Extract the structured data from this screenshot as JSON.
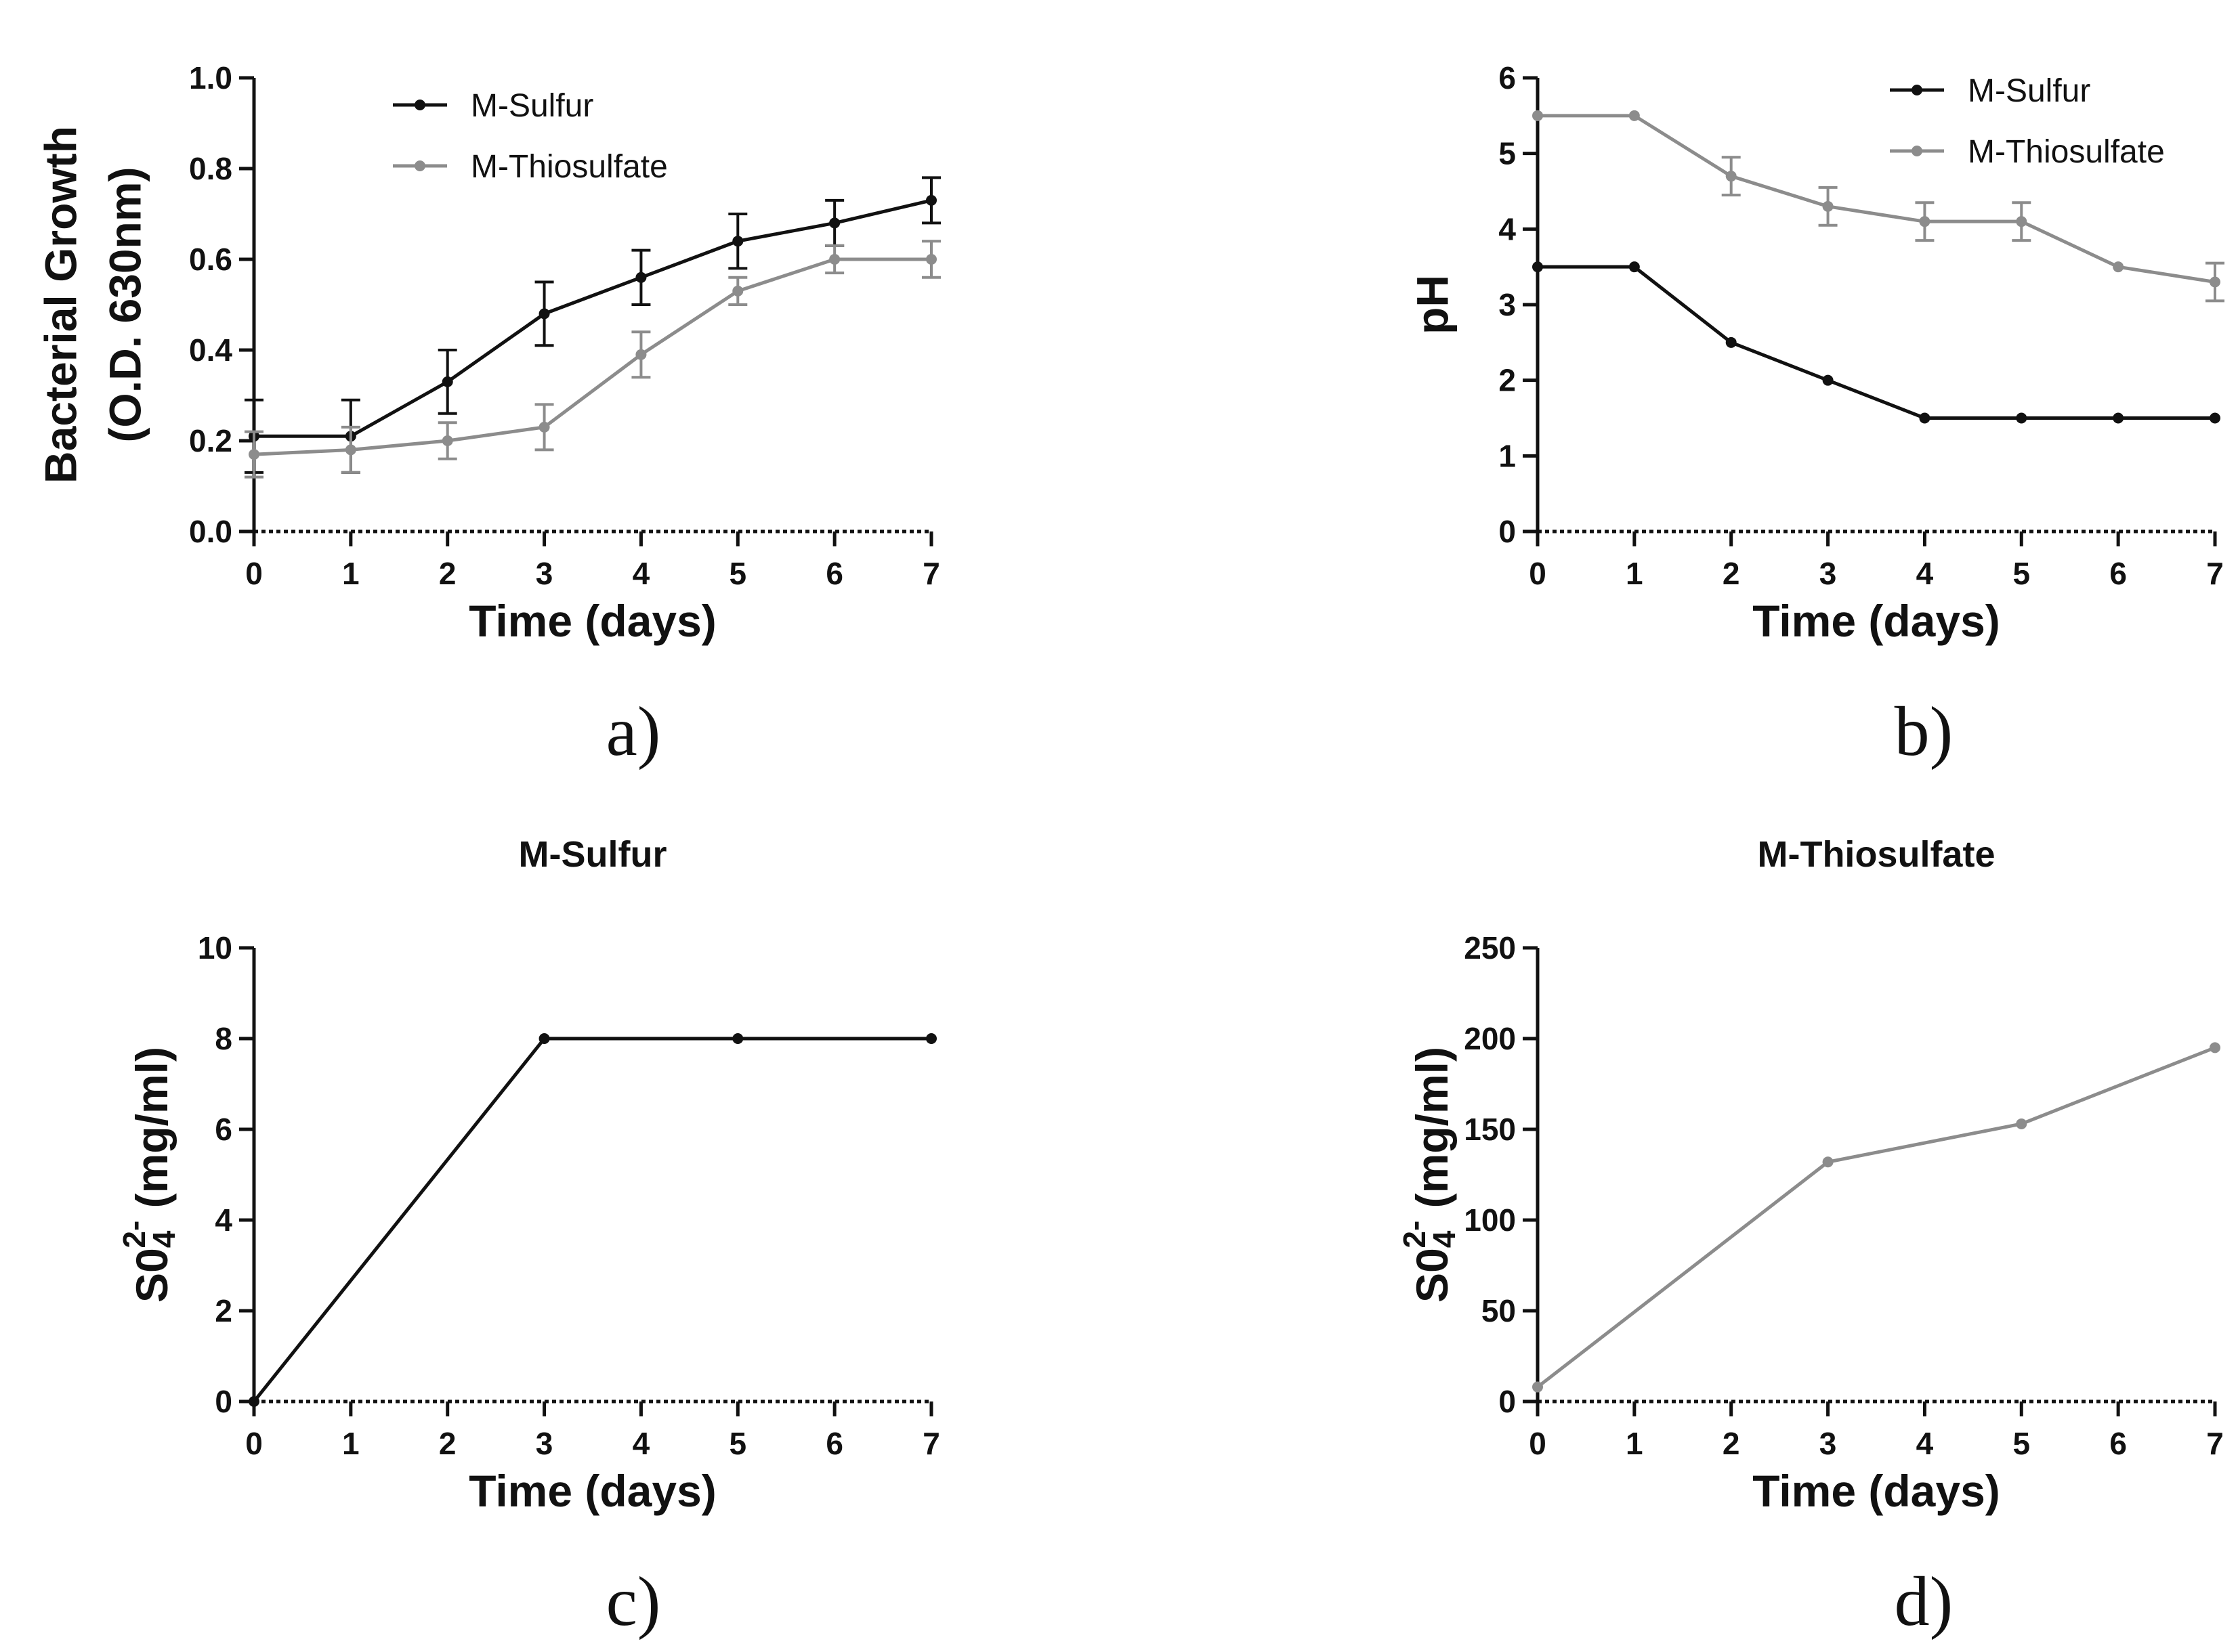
{
  "chart_data": [
    {
      "panel": "a",
      "panel_label": "a)",
      "type": "line",
      "title": "",
      "xlabel": "Time (days)",
      "ylabel_lines": [
        "Bacterial Growth",
        "(O.D. 630nm)"
      ],
      "x": [
        0,
        1,
        2,
        3,
        4,
        5,
        6,
        7
      ],
      "xlim": [
        0,
        7
      ],
      "ylim": [
        0,
        1.0
      ],
      "xticks": [
        "0",
        "1",
        "2",
        "3",
        "4",
        "5",
        "6",
        "7"
      ],
      "yticks": [
        "0.0",
        "0.2",
        "0.4",
        "0.6",
        "0.8",
        "1.0"
      ],
      "ytick_values": [
        0,
        0.2,
        0.4,
        0.6,
        0.8,
        1.0
      ],
      "legend": "top",
      "series": [
        {
          "name": "M-Sulfur",
          "color": "#111111",
          "values": [
            0.21,
            0.21,
            0.33,
            0.48,
            0.56,
            0.64,
            0.68,
            0.73
          ],
          "errors": [
            0.08,
            0.08,
            0.07,
            0.07,
            0.06,
            0.06,
            0.05,
            0.05
          ]
        },
        {
          "name": "M-Thiosulfate",
          "color": "#8c8c8c",
          "values": [
            0.17,
            0.18,
            0.2,
            0.23,
            0.39,
            0.53,
            0.6,
            0.6
          ],
          "errors": [
            0.05,
            0.05,
            0.04,
            0.05,
            0.05,
            0.03,
            0.03,
            0.04
          ]
        }
      ]
    },
    {
      "panel": "b",
      "panel_label": "b)",
      "type": "line",
      "title": "",
      "xlabel": "Time (days)",
      "ylabel_lines": [
        "pH"
      ],
      "x": [
        0,
        1,
        2,
        3,
        4,
        5,
        6,
        7
      ],
      "xlim": [
        0,
        7
      ],
      "ylim": [
        0,
        6
      ],
      "xticks": [
        "0",
        "1",
        "2",
        "3",
        "4",
        "5",
        "6",
        "7"
      ],
      "yticks": [
        "0",
        "1",
        "2",
        "3",
        "4",
        "5",
        "6"
      ],
      "ytick_values": [
        0,
        1,
        2,
        3,
        4,
        5,
        6
      ],
      "legend": "top-right",
      "series": [
        {
          "name": "M-Sulfur",
          "color": "#111111",
          "values": [
            3.5,
            3.5,
            2.5,
            2.0,
            1.5,
            1.5,
            1.5,
            1.5
          ],
          "errors": [
            0,
            0,
            0,
            0,
            0,
            0,
            0,
            0
          ]
        },
        {
          "name": "M-Thiosulfate",
          "color": "#8c8c8c",
          "values": [
            5.5,
            5.5,
            4.7,
            4.3,
            4.1,
            4.1,
            3.5,
            3.3
          ],
          "errors": [
            0,
            0,
            0.25,
            0.25,
            0.25,
            0.25,
            0,
            0.25
          ]
        }
      ]
    },
    {
      "panel": "c",
      "panel_label": "c)",
      "type": "line",
      "title": "M-Sulfur",
      "xlabel": "Time (days)",
      "ylabel_main": "S0",
      "ylabel_sub": "4",
      "ylabel_sup": "2-",
      "ylabel_unit": " (mg/ml)",
      "x": [
        0,
        3,
        5,
        7
      ],
      "xlim": [
        0,
        7
      ],
      "ylim": [
        0,
        10
      ],
      "xticks": [
        "0",
        "1",
        "2",
        "3",
        "4",
        "5",
        "6",
        "7"
      ],
      "yticks": [
        "0",
        "2",
        "4",
        "6",
        "8",
        "10"
      ],
      "ytick_values": [
        0,
        2,
        4,
        6,
        8,
        10
      ],
      "series": [
        {
          "name": "M-Sulfur",
          "color": "#111111",
          "values": [
            0,
            8,
            8,
            8
          ]
        }
      ]
    },
    {
      "panel": "d",
      "panel_label": "d)",
      "type": "line",
      "title": "M-Thiosulfate",
      "xlabel": "Time (days)",
      "ylabel_main": "S0",
      "ylabel_sub": "4",
      "ylabel_sup": "2-",
      "ylabel_unit": " (mg/ml)",
      "x": [
        0,
        3,
        5,
        7
      ],
      "xlim": [
        0,
        7
      ],
      "ylim": [
        0,
        250
      ],
      "xticks": [
        "0",
        "1",
        "2",
        "3",
        "4",
        "5",
        "6",
        "7"
      ],
      "yticks": [
        "0",
        "50",
        "100",
        "150",
        "200",
        "250"
      ],
      "ytick_values": [
        0,
        50,
        100,
        150,
        200,
        250
      ],
      "series": [
        {
          "name": "M-Thiosulfate",
          "color": "#8c8c8c",
          "values": [
            8,
            132,
            153,
            195
          ]
        }
      ]
    }
  ]
}
